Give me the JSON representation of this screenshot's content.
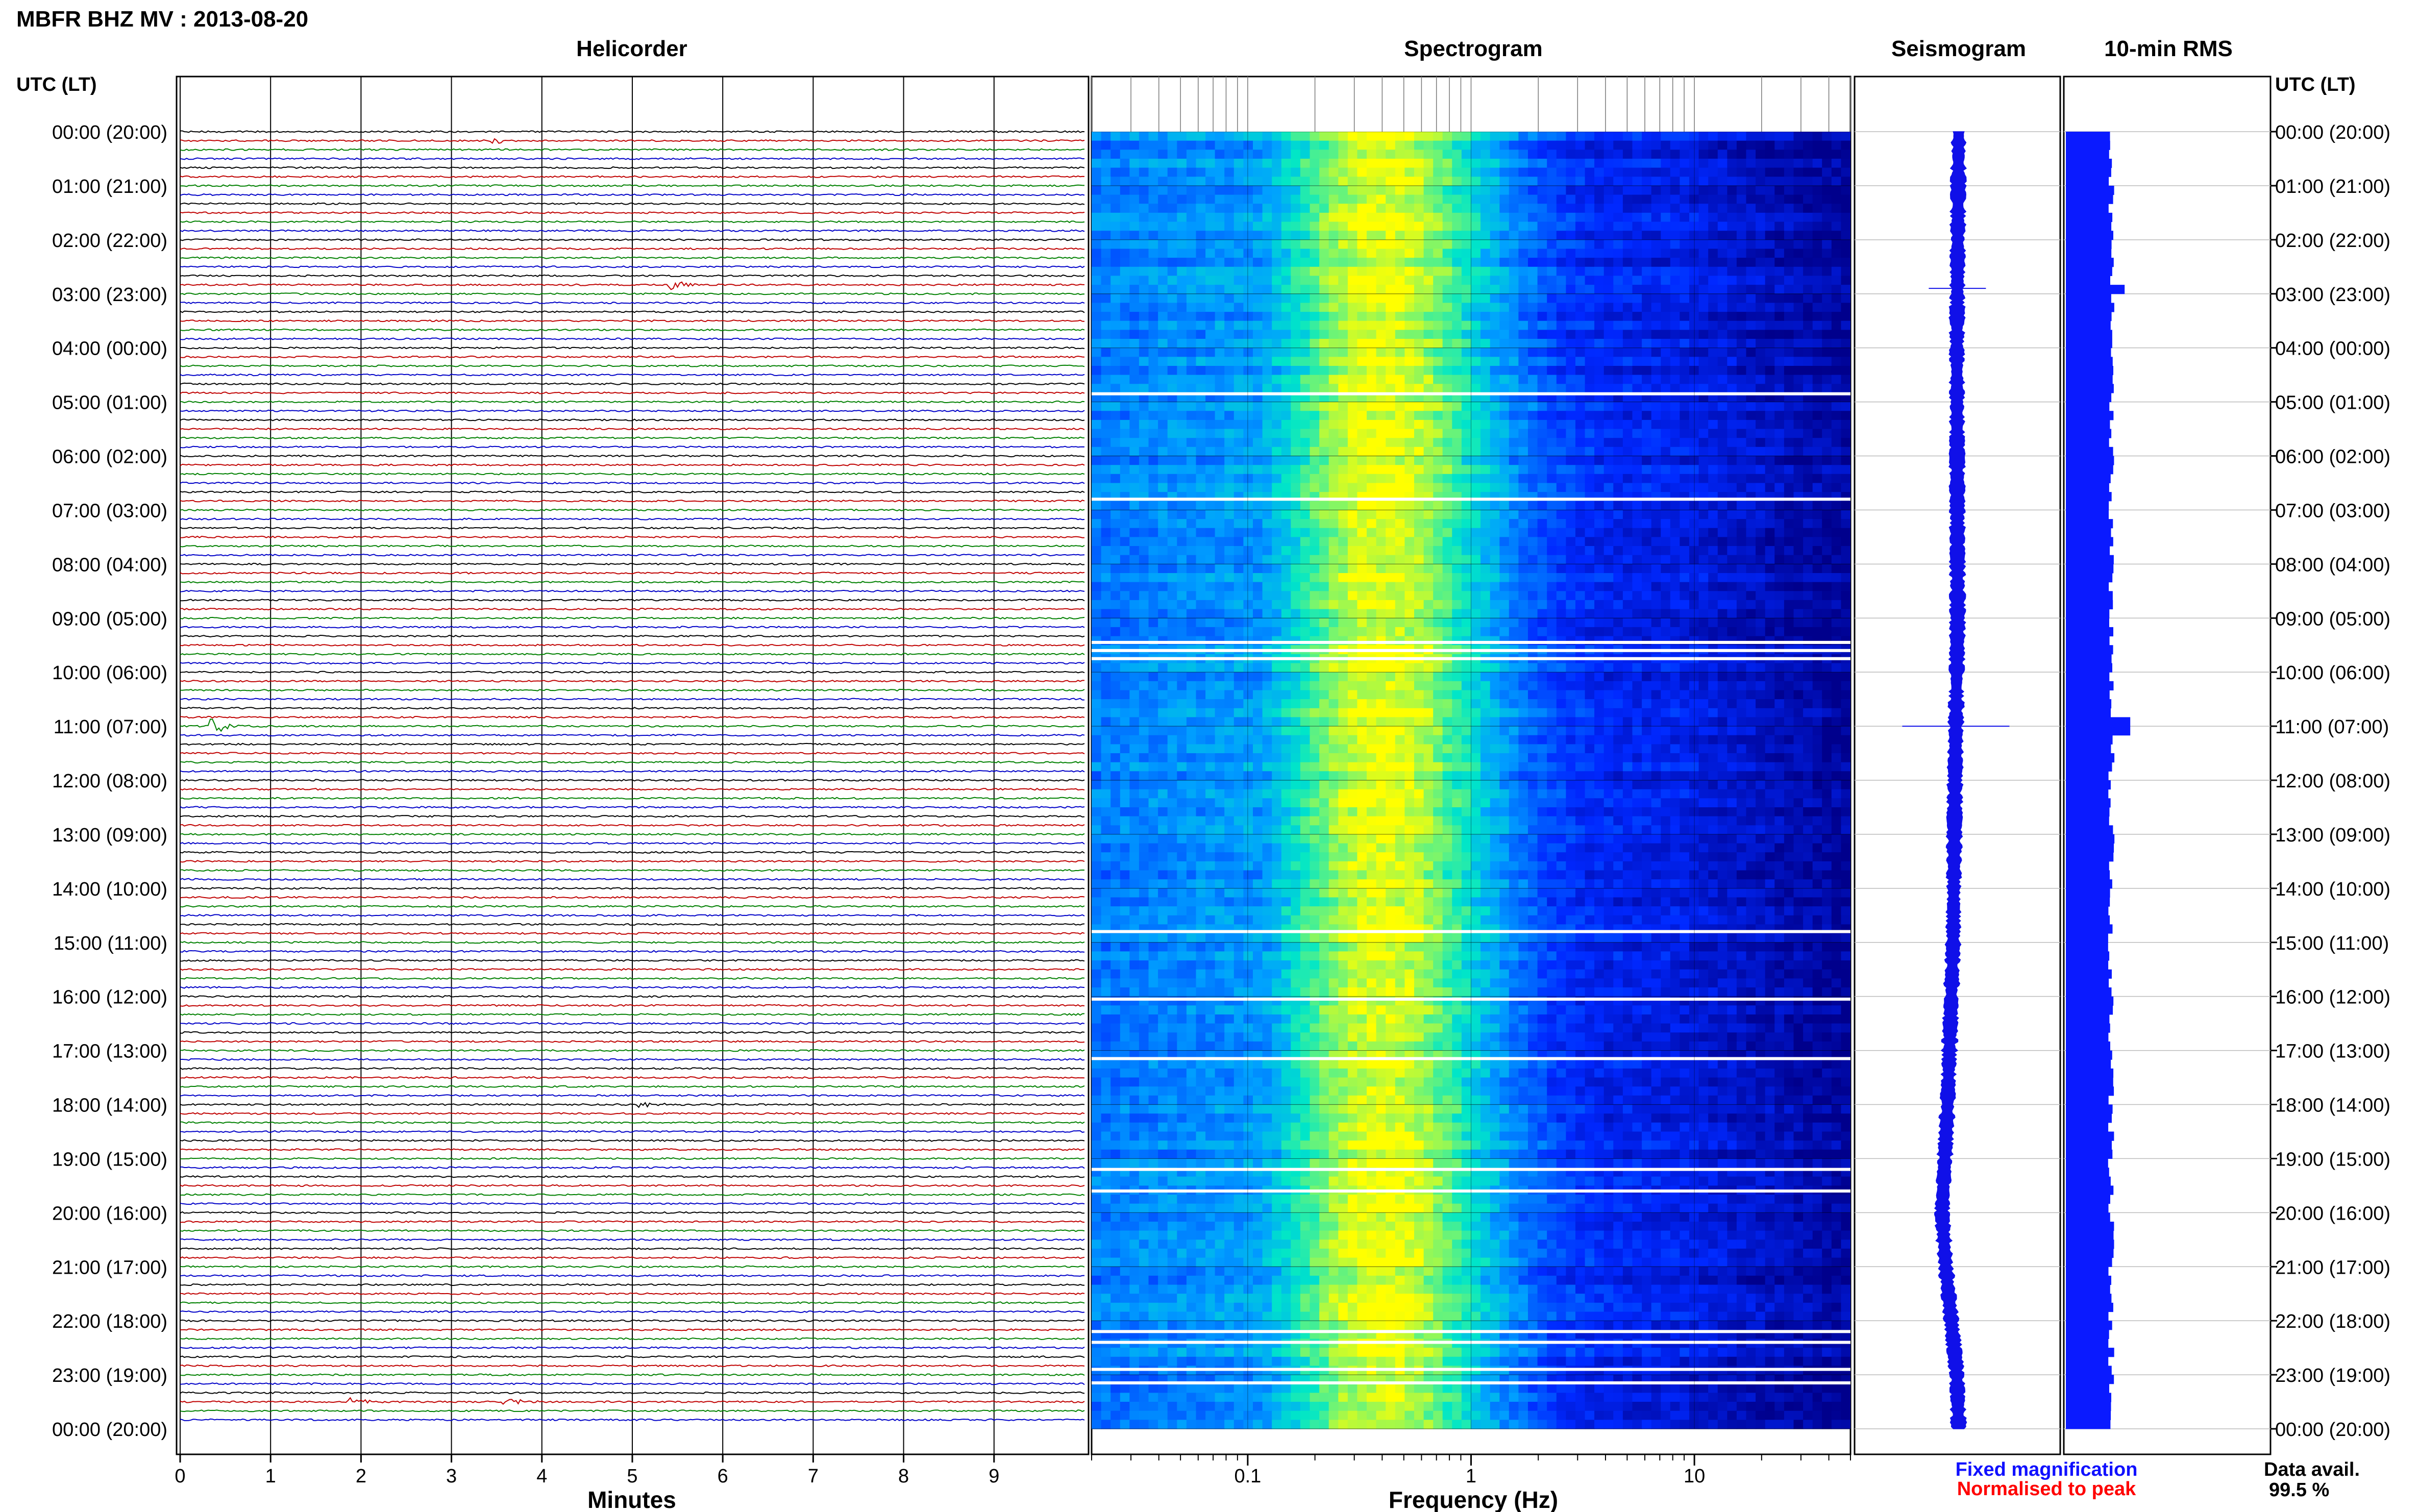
{
  "header": {
    "title": "MBFR BHZ MV : 2013-08-20",
    "utc_label": "UTC (LT)"
  },
  "panels": {
    "helicorder": "Helicorder",
    "spectrogram": "Spectrogram",
    "seismogram": "Seismogram",
    "rms": "10-min RMS"
  },
  "axes": {
    "minutes_label": "Minutes",
    "frequency_label": "Frequency (Hz)"
  },
  "footer": {
    "fixed_magnification": "Fixed magnification",
    "normalised_to_peak": "Normalised to peak",
    "data_avail_label": "Data avail.",
    "data_avail_value": "99.5 %"
  },
  "colors": {
    "trace_cycle": [
      "#000000",
      "#c00000",
      "#008000",
      "#0000c8"
    ],
    "fixed_magnification": "#1010ff",
    "normalised_to_peak": "#ff0000",
    "seismogram": "#1010e8",
    "rms": "#0a1aff",
    "grid": "#000000",
    "spectrogram_low": "#00007f",
    "spectrogram_high": "#ffff00"
  },
  "chart_data": [
    {
      "type": "line",
      "name": "helicorder",
      "x_ticks": [
        "0",
        "1",
        "2",
        "3",
        "4",
        "5",
        "6",
        "7",
        "8",
        "9"
      ],
      "xlim": [
        0,
        10
      ],
      "xlabel": "Minutes",
      "traces_per_hour": 6,
      "hours": 24,
      "row_labels": [
        "00:00 (20:00)",
        "01:00 (21:00)",
        "02:00 (22:00)",
        "03:00 (23:00)",
        "04:00 (00:00)",
        "05:00 (01:00)",
        "06:00 (02:00)",
        "07:00 (03:00)",
        "08:00 (04:00)",
        "09:00 (05:00)",
        "10:00 (06:00)",
        "11:00 (07:00)",
        "12:00 (08:00)",
        "13:00 (09:00)",
        "14:00 (10:00)",
        "15:00 (11:00)",
        "16:00 (12:00)",
        "17:00 (13:00)",
        "18:00 (14:00)",
        "19:00 (15:00)",
        "20:00 (16:00)",
        "21:00 (17:00)",
        "22:00 (18:00)",
        "23:00 (19:00)",
        "00:00 (20:00)"
      ],
      "events": [
        {
          "hour": 11.0,
          "minute": 0.35,
          "amplitude": 3.5
        },
        {
          "hour": 2.8,
          "minute": 5.45,
          "amplitude": 2.5
        },
        {
          "hour": 23.5,
          "minute": 3.6,
          "amplitude": 1.8
        },
        {
          "hour": 23.5,
          "minute": 1.9,
          "amplitude": 1.5
        },
        {
          "hour": 18.0,
          "minute": 5.1,
          "amplitude": 1.2
        },
        {
          "hour": 0.2,
          "minute": 3.5,
          "amplitude": 1.0
        }
      ]
    },
    {
      "type": "heatmap",
      "name": "spectrogram",
      "xscale": "log",
      "xlim": [
        0.02,
        50
      ],
      "x_ticks": [
        0.1,
        1,
        10
      ],
      "x_tick_labels": [
        "0.1",
        "1",
        "10"
      ],
      "xlabel": "Frequency (Hz)",
      "ylim_hours": [
        0,
        24
      ],
      "peak_frequency_hz": 0.4,
      "gaps_hours": [
        4.85,
        6.8,
        9.45,
        9.6,
        9.75,
        14.8,
        16.05,
        17.15,
        19.2,
        19.6,
        22.2,
        22.4,
        22.9,
        23.15
      ]
    },
    {
      "type": "line",
      "name": "seismogram",
      "ylim_hours": [
        0,
        24
      ],
      "drift": [
        [
          0,
          0.0
        ],
        [
          4,
          -0.05
        ],
        [
          9,
          -0.03
        ],
        [
          12,
          -0.1
        ],
        [
          15,
          -0.15
        ],
        [
          18,
          -0.3
        ],
        [
          20,
          -0.45
        ],
        [
          21,
          -0.35
        ],
        [
          23,
          -0.05
        ],
        [
          24,
          0.0
        ]
      ],
      "spikes": [
        {
          "hour": 2.9,
          "width": 1.6
        },
        {
          "hour": 11.0,
          "width": 3.0
        }
      ]
    },
    {
      "type": "bar",
      "name": "10-min RMS",
      "ylim_hours": [
        0,
        24
      ],
      "bins_per_hour": 6,
      "typical_level": 0.82,
      "peaks": [
        {
          "hour": 2.9,
          "level": 1.05
        },
        {
          "hour": 11.0,
          "level": 1.15
        }
      ]
    }
  ]
}
